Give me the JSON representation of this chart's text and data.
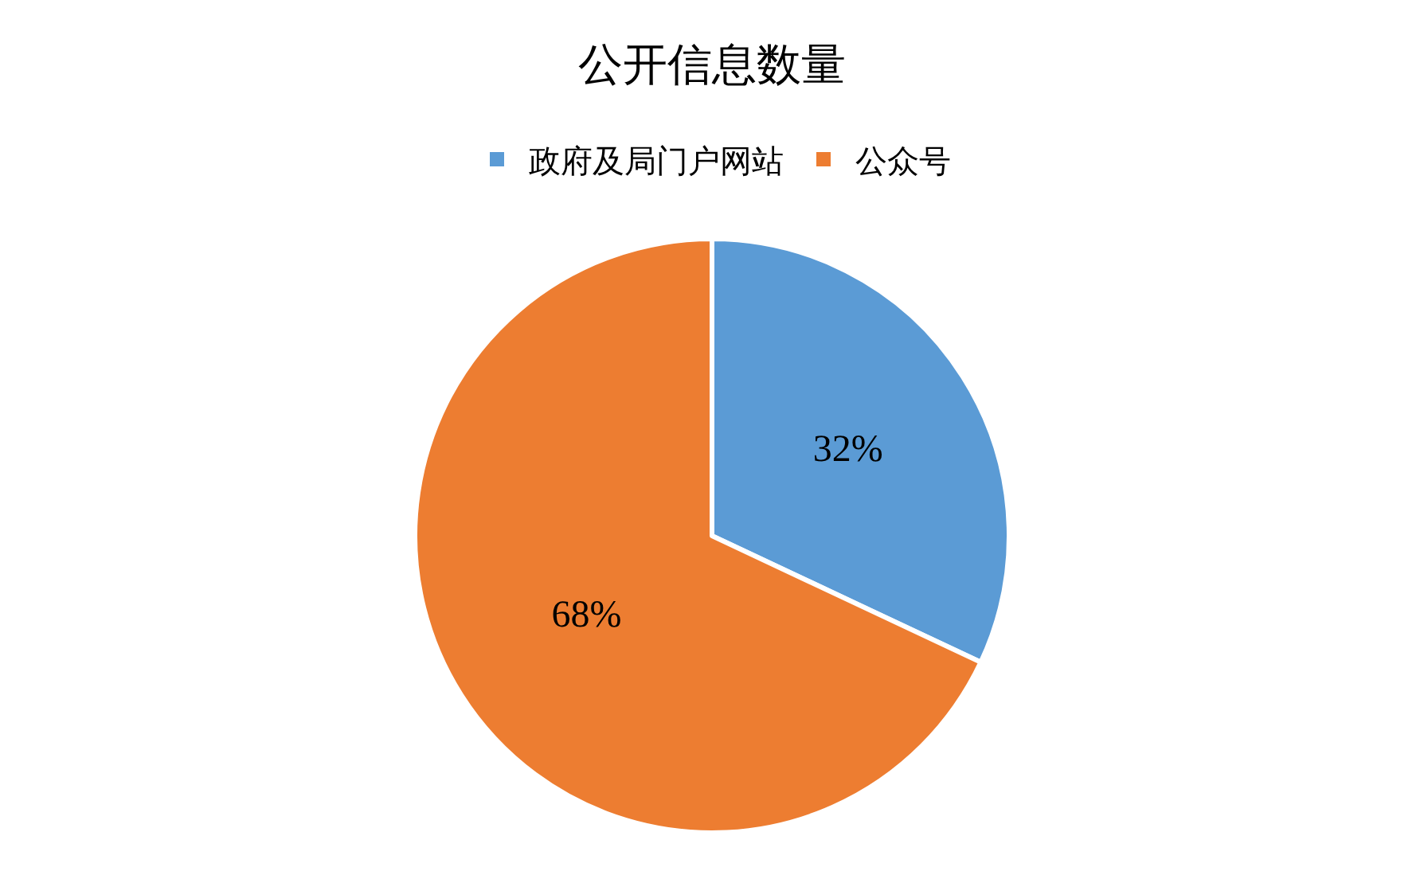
{
  "chart_data": {
    "type": "pie",
    "title": "公开信息数量",
    "categories": [
      "政府及局门户网站",
      "公众号"
    ],
    "values": [
      32,
      68
    ],
    "colors": [
      "#5b9bd5",
      "#ed7d31"
    ],
    "value_labels": [
      "32%",
      "68%"
    ],
    "legend": "top"
  }
}
